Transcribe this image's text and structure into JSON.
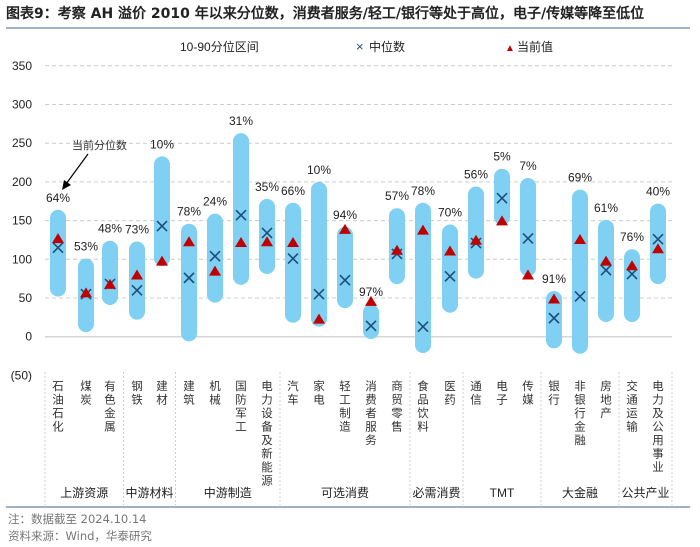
{
  "title": "图表9：考察 AH 溢价 2010 年以来分位数，消费者服务/轻工/银行等处于高位，电子/传媒等降至低位",
  "note": "注：数据截至 2024.10.14",
  "source": "资料来源：Wind，华泰研究",
  "chart_data": {
    "type": "range-bar",
    "legend": {
      "range": "10-90分位区间",
      "median": "中位数",
      "current": "当前值",
      "placement": "top"
    },
    "annotation": "当前分位数",
    "ylim": [
      -50,
      350
    ],
    "yticks": [
      "(50)",
      "0",
      "50",
      "100",
      "150",
      "200",
      "250",
      "300",
      "350"
    ],
    "ytick_values": [
      -50,
      0,
      50,
      100,
      150,
      200,
      250,
      300,
      350
    ],
    "grid": true,
    "colors": {
      "range": "#7fd0f3",
      "median": "#1f4e79",
      "current": "#c00000"
    },
    "groups": [
      {
        "name": "上游资源",
        "count": 3
      },
      {
        "name": "中游材料",
        "count": 2
      },
      {
        "name": "中游制造",
        "count": 4
      },
      {
        "name": "可选消费",
        "count": 5
      },
      {
        "name": "必需消费",
        "count": 2
      },
      {
        "name": "TMT",
        "count": 3
      },
      {
        "name": "大金融",
        "count": 3
      },
      {
        "name": "公共产业",
        "count": 2
      }
    ],
    "categories": [
      "石油石化",
      "煤炭",
      "有色金属",
      "钢铁",
      "建材",
      "建筑",
      "机械",
      "国防军工",
      "电力设备及新能源",
      "汽车",
      "家电",
      "轻工制造",
      "消费者服务",
      "商贸零售",
      "食品饮料",
      "医药",
      "通信",
      "电子",
      "传媒",
      "银行",
      "非银行金融",
      "房地产",
      "交通运输",
      "电力及公用事业"
    ],
    "p10": [
      52,
      6,
      41,
      22,
      91,
      -6,
      44,
      67,
      81,
      18,
      13,
      37,
      -3,
      68,
      -21,
      31,
      75,
      144,
      78,
      -15,
      -22,
      19,
      19,
      68
    ],
    "p90": [
      164,
      101,
      124,
      123,
      233,
      146,
      159,
      263,
      178,
      173,
      200,
      142,
      42,
      166,
      173,
      145,
      194,
      217,
      205,
      59,
      190,
      151,
      113,
      172
    ],
    "median": [
      115,
      55,
      68,
      60,
      143,
      76,
      104,
      157,
      134,
      101,
      55,
      73,
      14,
      107,
      13,
      78,
      121,
      179,
      127,
      24,
      52,
      86,
      81,
      126
    ],
    "current": [
      126,
      56,
      67,
      79,
      97,
      122,
      84,
      121,
      122,
      121,
      22,
      138,
      45,
      111,
      137,
      110,
      124,
      149,
      79,
      48,
      125,
      97,
      91,
      113
    ],
    "percentile_labels": [
      "64%",
      "53%",
      "48%",
      "73%",
      "10%",
      "78%",
      "24%",
      "31%",
      "35%",
      "66%",
      "10%",
      "94%",
      "97%",
      "57%",
      "78%",
      "70%",
      "56%",
      "5%",
      "7%",
      "91%",
      "69%",
      "61%",
      "76%",
      "40%"
    ]
  }
}
